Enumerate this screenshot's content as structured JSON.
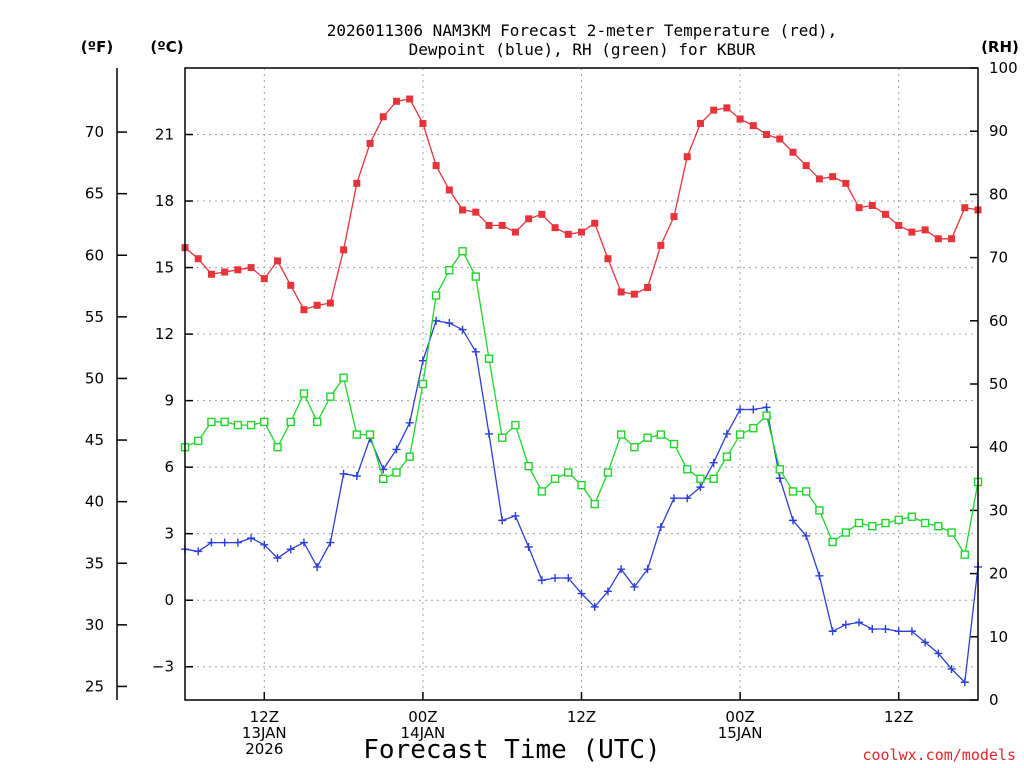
{
  "chart_data": {
    "type": "line",
    "title_line1": "2026011306 NAM3KM Forecast 2-meter Temperature (red),",
    "title_line2": "Dewpoint (blue), RH (green) for KBUR",
    "xlabel": "Forecast Time (UTC)",
    "credit": "coolwx.com/models",
    "units": {
      "fahrenheit": "(ºF)",
      "celsius": "(ºC)",
      "rh": "(RH)"
    },
    "x_hours_since_12Z_13JAN": {
      "start": -6,
      "end": 54,
      "step": 1
    },
    "x_ticks": [
      {
        "hour": 0,
        "lines": [
          "12Z",
          "13JAN",
          "2026"
        ]
      },
      {
        "hour": 12,
        "lines": [
          "00Z",
          "14JAN"
        ]
      },
      {
        "hour": 24,
        "lines": [
          "12Z"
        ]
      },
      {
        "hour": 36,
        "lines": [
          "00Z",
          "15JAN"
        ]
      },
      {
        "hour": 48,
        "lines": [
          "12Z"
        ]
      }
    ],
    "celsius_axis": {
      "range": [
        -4.5,
        24
      ],
      "ticks": [
        "−3",
        "0",
        "3",
        "6",
        "9",
        "12",
        "15",
        "18",
        "21"
      ]
    },
    "fahrenheit_axis": {
      "ticks": [
        "25",
        "30",
        "35",
        "40",
        "45",
        "50",
        "55",
        "60",
        "65",
        "70"
      ]
    },
    "rh_axis": {
      "range": [
        0,
        100
      ],
      "ticks": [
        "0",
        "10",
        "20",
        "30",
        "40",
        "50",
        "60",
        "70",
        "80",
        "90",
        "100"
      ]
    },
    "series": [
      {
        "name": "Temperature (°C)",
        "axis": "celsius",
        "color": "#e8333a",
        "marker": "filled-square",
        "values": [
          15.9,
          15.4,
          14.7,
          14.8,
          14.9,
          15.0,
          14.5,
          15.3,
          14.2,
          13.1,
          13.3,
          13.4,
          15.8,
          18.8,
          20.6,
          21.8,
          22.5,
          22.6,
          21.5,
          19.6,
          18.5,
          17.6,
          17.5,
          16.9,
          16.9,
          16.6,
          17.2,
          17.4,
          16.8,
          16.5,
          16.6,
          17.0,
          15.4,
          13.9,
          13.8,
          14.1,
          16.0,
          17.3,
          20.0,
          21.5,
          22.1,
          22.2,
          21.7,
          21.4,
          21.0,
          20.8,
          20.2,
          19.6,
          19.0,
          19.1,
          18.8,
          17.7,
          17.8,
          17.4,
          16.9,
          16.6,
          16.7,
          16.3,
          16.3,
          17.7,
          17.6
        ]
      },
      {
        "name": "Dewpoint (°C)",
        "axis": "celsius",
        "color": "#2b3fd8",
        "marker": "plus",
        "values": [
          2.3,
          2.2,
          2.6,
          2.6,
          2.6,
          2.8,
          2.5,
          1.9,
          2.3,
          2.6,
          1.5,
          2.6,
          5.7,
          5.6,
          7.3,
          5.9,
          6.8,
          8.0,
          10.8,
          12.6,
          12.5,
          12.2,
          11.2,
          7.5,
          3.6,
          3.8,
          2.4,
          0.9,
          1.0,
          1.0,
          0.3,
          -0.3,
          0.4,
          1.4,
          0.6,
          1.4,
          3.3,
          4.6,
          4.6,
          5.1,
          6.2,
          7.5,
          8.6,
          8.6,
          8.7,
          5.5,
          3.6,
          2.9,
          1.1,
          -1.4,
          -1.1,
          -1.0,
          -1.3,
          -1.3,
          -1.4,
          -1.4,
          -1.9,
          -2.4,
          -3.1,
          -3.7,
          1.5
        ]
      },
      {
        "name": "RH (%)",
        "axis": "rh",
        "color": "#1fd52a",
        "marker": "open-square",
        "values": [
          40,
          41,
          44,
          44,
          43.5,
          43.5,
          44,
          40,
          44,
          48.5,
          44,
          48,
          51,
          42,
          42,
          35,
          36,
          38.5,
          50,
          64,
          68,
          71,
          67,
          54,
          41.5,
          43.5,
          37,
          33,
          35,
          36,
          34,
          31,
          36,
          42,
          40,
          41.5,
          42,
          40.5,
          36.5,
          35,
          35,
          38.5,
          42,
          43,
          45,
          36.5,
          33,
          33,
          30,
          25,
          26.5,
          28,
          27.5,
          28,
          28.5,
          29,
          28,
          27.5,
          26.5,
          23,
          34.5
        ]
      }
    ]
  }
}
